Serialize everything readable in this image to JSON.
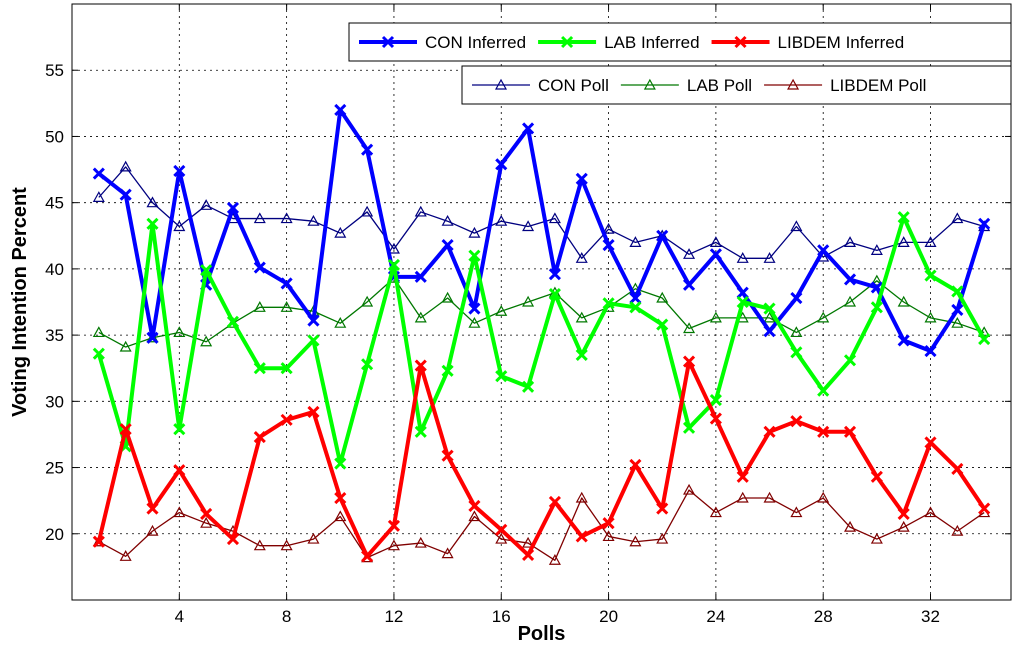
{
  "chart_data": {
    "type": "line",
    "title": "",
    "xlabel": "Polls",
    "ylabel": "Voting Intention Percent",
    "xlim": [
      0,
      35
    ],
    "ylim": [
      15,
      60
    ],
    "xticks": [
      4,
      8,
      12,
      16,
      20,
      24,
      28,
      32
    ],
    "yticks": [
      20,
      25,
      30,
      35,
      40,
      45,
      50,
      55
    ],
    "grid": true,
    "x": [
      1,
      2,
      3,
      4,
      5,
      6,
      7,
      8,
      9,
      10,
      11,
      12,
      13,
      14,
      15,
      16,
      17,
      18,
      19,
      20,
      21,
      22,
      23,
      24,
      25,
      26,
      27,
      28,
      29,
      30,
      31,
      32,
      33,
      34
    ],
    "legends": [
      {
        "placement": "top-right",
        "entries": [
          "CON Inferred",
          "LAB Inferred",
          "LIBDEM Inferred"
        ]
      },
      {
        "placement": "top-right",
        "entries": [
          "CON Poll",
          "LAB Poll",
          "LIBDEM Poll"
        ]
      }
    ],
    "series": [
      {
        "name": "CON Inferred",
        "color": "#0000ff",
        "marker": "x",
        "line": "thick",
        "values": [
          47.2,
          45.6,
          34.8,
          47.4,
          38.8,
          44.6,
          40.1,
          38.9,
          36.1,
          52.0,
          49.0,
          39.4,
          39.4,
          41.8,
          37.0,
          47.9,
          50.6,
          39.6,
          46.8,
          41.8,
          37.8,
          42.5,
          38.8,
          41.1,
          38.2,
          35.3,
          37.8,
          41.4,
          39.2,
          38.6,
          34.6,
          33.8,
          36.9,
          43.4
        ]
      },
      {
        "name": "LAB Inferred",
        "color": "#00ff00",
        "marker": "x",
        "line": "thick",
        "values": [
          33.6,
          26.6,
          43.4,
          27.9,
          39.9,
          36.0,
          32.5,
          32.5,
          34.6,
          25.3,
          32.8,
          40.3,
          27.7,
          32.3,
          41.0,
          31.9,
          31.1,
          38.1,
          33.5,
          37.4,
          37.1,
          35.8,
          28.0,
          30.1,
          37.5,
          37.0,
          33.7,
          30.8,
          33.1,
          37.1,
          43.9,
          39.5,
          38.3,
          34.7
        ]
      },
      {
        "name": "LIBDEM Inferred",
        "color": "#ff0000",
        "marker": "x",
        "line": "thick",
        "values": [
          19.4,
          27.9,
          21.9,
          24.8,
          21.5,
          19.6,
          27.3,
          28.6,
          29.2,
          22.7,
          18.3,
          20.6,
          32.7,
          25.9,
          22.1,
          20.3,
          18.4,
          22.4,
          19.8,
          20.8,
          25.2,
          21.9,
          33.0,
          28.7,
          24.3,
          27.7,
          28.5,
          27.7,
          27.7,
          24.3,
          21.5,
          26.9,
          24.9,
          21.9
        ]
      },
      {
        "name": "CON Poll",
        "color": "#000080",
        "marker": "triangle",
        "line": "thin",
        "values": [
          45.4,
          47.7,
          45.0,
          43.2,
          44.8,
          43.8,
          43.8,
          43.8,
          43.6,
          42.7,
          44.3,
          41.5,
          44.3,
          43.6,
          42.7,
          43.6,
          43.2,
          43.8,
          40.8,
          43.0,
          42.0,
          42.5,
          41.1,
          42.0,
          40.8,
          40.8,
          43.2,
          40.9,
          42.0,
          41.4,
          42.0,
          42.0,
          43.8,
          43.2
        ]
      },
      {
        "name": "LAB Poll",
        "color": "#007800",
        "marker": "triangle",
        "line": "thin",
        "values": [
          35.2,
          34.1,
          34.8,
          35.2,
          34.5,
          35.9,
          37.1,
          37.1,
          36.8,
          35.9,
          37.5,
          39.3,
          36.3,
          37.8,
          35.9,
          36.8,
          37.5,
          38.2,
          36.3,
          37.1,
          38.5,
          37.8,
          35.5,
          36.3,
          36.3,
          36.3,
          35.2,
          36.3,
          37.5,
          39.1,
          37.5,
          36.3,
          35.9,
          35.2
        ]
      },
      {
        "name": "LIBDEM Poll",
        "color": "#800000",
        "marker": "triangle",
        "line": "thin",
        "values": [
          19.4,
          18.3,
          20.2,
          21.6,
          20.8,
          20.2,
          19.1,
          19.1,
          19.6,
          21.3,
          18.2,
          19.1,
          19.3,
          18.5,
          21.3,
          19.6,
          19.3,
          18.0,
          22.7,
          19.8,
          19.4,
          19.6,
          23.3,
          21.6,
          22.7,
          22.7,
          21.6,
          22.7,
          20.5,
          19.6,
          20.5,
          21.6,
          20.2,
          21.6
        ]
      }
    ]
  }
}
